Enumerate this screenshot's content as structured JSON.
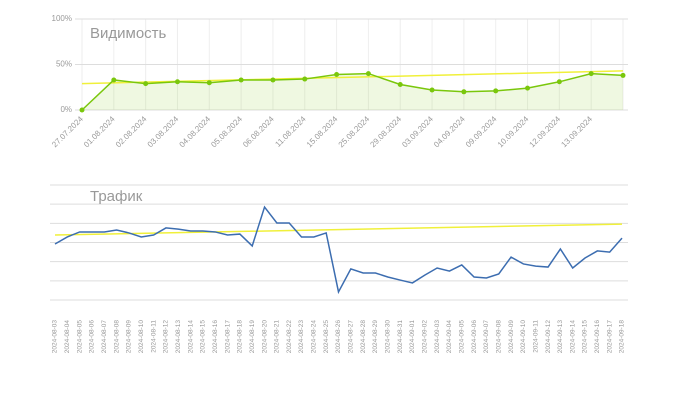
{
  "chart_data": [
    {
      "type": "line",
      "title": "Видимость",
      "categories": [
        "27.07.2024",
        "01.08.2024",
        "02.08.2024",
        "03.08.2024",
        "04.08.2024",
        "05.08.2024",
        "06.08.2024",
        "11.08.2024",
        "15.08.2024",
        "25.08.2024",
        "29.08.2024",
        "03.09.2024",
        "04.09.2024",
        "09.09.2024",
        "10.09.2024",
        "12.09.2024",
        "13.09.2024",
        null
      ],
      "series": [
        {
          "color": "#7ac70c",
          "values": [
            0,
            33,
            29,
            31,
            30,
            33,
            33,
            34,
            39,
            40,
            28,
            22,
            20,
            21,
            24,
            31,
            40,
            38
          ]
        }
      ],
      "trend": {
        "color": "#f0f03a",
        "values": [
          29,
          43
        ]
      },
      "ylim": [
        0,
        100
      ],
      "yticks": [
        {
          "value": 0,
          "label": "0%"
        },
        {
          "value": 50,
          "label": "50%"
        },
        {
          "value": 100,
          "label": "100%"
        }
      ],
      "grid": true
    },
    {
      "type": "line",
      "title": "Трафик",
      "categories": [
        "2024-08-03",
        "2024-08-04",
        "2024-08-05",
        "2024-08-06",
        "2024-08-07",
        "2024-08-08",
        "2024-08-09",
        "2024-08-10",
        "2024-08-11",
        "2024-08-12",
        "2024-08-13",
        "2024-08-14",
        "2024-08-15",
        "2024-08-16",
        "2024-08-17",
        "2024-08-18",
        "2024-08-19",
        "2024-08-20",
        "2024-08-21",
        "2024-08-22",
        "2024-08-23",
        "2024-08-24",
        "2024-08-25",
        "2024-08-26",
        "2024-08-27",
        "2024-08-28",
        "2024-08-29",
        "2024-08-30",
        "2024-08-31",
        "2024-09-01",
        "2024-09-02",
        "2024-09-03",
        "2024-09-04",
        "2024-09-05",
        "2024-09-06",
        "2024-09-07",
        "2024-09-08",
        "2024-09-09",
        "2024-09-10",
        "2024-09-11",
        "2024-09-12",
        "2024-09-13",
        "2024-09-14",
        "2024-09-15",
        "2024-09-16",
        "2024-09-17",
        "2024-09-18"
      ],
      "series": [
        {
          "color": "#3c6db0",
          "values": [
            2.92,
            3.29,
            3.55,
            3.55,
            3.55,
            3.65,
            3.5,
            3.29,
            3.39,
            3.76,
            3.7,
            3.6,
            3.6,
            3.55,
            3.39,
            3.44,
            2.82,
            4.85,
            4.02,
            4.02,
            3.29,
            3.29,
            3.5,
            0.42,
            1.62,
            1.41,
            1.41,
            1.2,
            1.04,
            0.89,
            1.3,
            1.67,
            1.51,
            1.83,
            1.2,
            1.15,
            1.36,
            2.24,
            1.88,
            1.77,
            1.72,
            2.66,
            1.67,
            2.19,
            2.56,
            2.5,
            3.23
          ]
        }
      ],
      "trend": {
        "color": "#f0f03a",
        "values": [
          3.39,
          3.96
        ]
      },
      "ylim": [
        0,
        6
      ],
      "ygrid": [
        0,
        1,
        2,
        3,
        4,
        5,
        6
      ],
      "grid": true
    }
  ]
}
